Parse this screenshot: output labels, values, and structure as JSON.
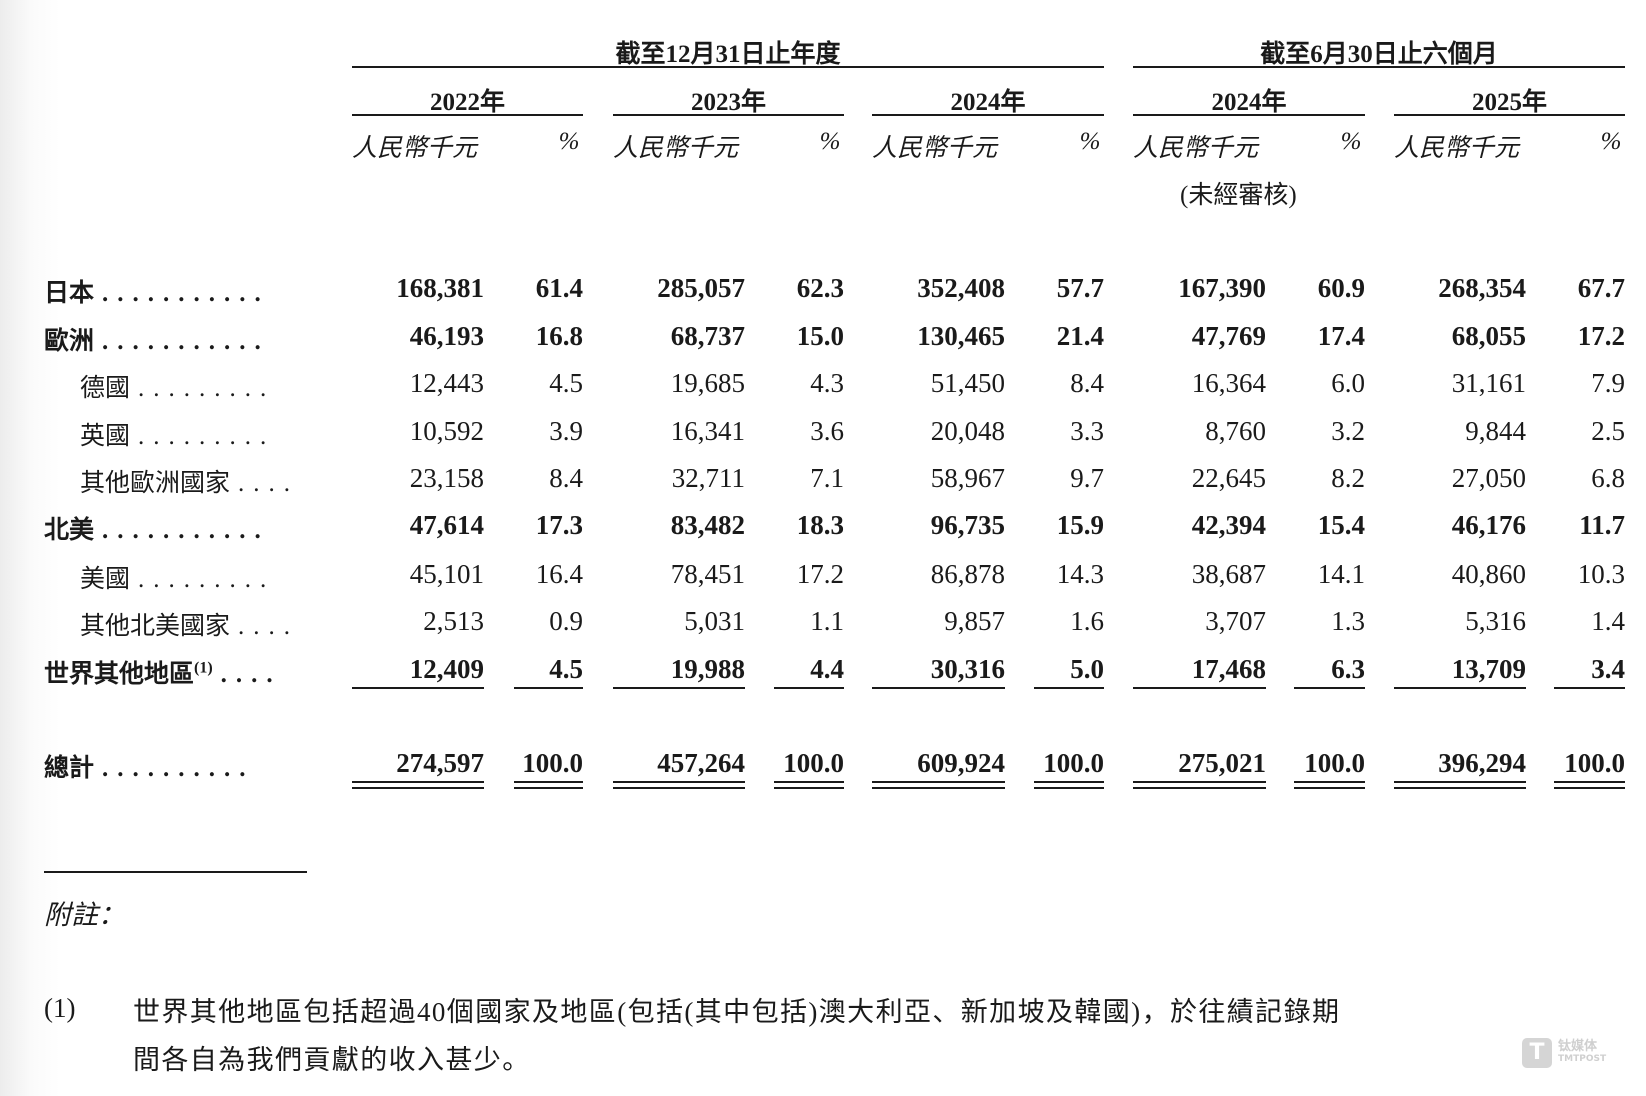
{
  "header": {
    "group_annual": "截至12月31日止年度",
    "group_interim": "截至6月30日止六個月",
    "years": [
      "2022年",
      "2023年",
      "2024年",
      "2024年",
      "2025年"
    ],
    "unit_amount": "人民幣千元",
    "unit_pct": "%",
    "unaudited": "(未經審核)"
  },
  "rows": [
    {
      "label": "日本",
      "dots": "...........",
      "bold": true,
      "values": [
        "168,381",
        "61.4",
        "285,057",
        "62.3",
        "352,408",
        "57.7",
        "167,390",
        "60.9",
        "268,354",
        "67.7"
      ]
    },
    {
      "label": "歐洲",
      "dots": "...........",
      "bold": true,
      "values": [
        "46,193",
        "16.8",
        "68,737",
        "15.0",
        "130,465",
        "21.4",
        "47,769",
        "17.4",
        "68,055",
        "17.2"
      ]
    },
    {
      "label": "德國",
      "dots": ".........",
      "bold": false,
      "indent": true,
      "values": [
        "12,443",
        "4.5",
        "19,685",
        "4.3",
        "51,450",
        "8.4",
        "16,364",
        "6.0",
        "31,161",
        "7.9"
      ]
    },
    {
      "label": "英國",
      "dots": ".........",
      "bold": false,
      "indent": true,
      "values": [
        "10,592",
        "3.9",
        "16,341",
        "3.6",
        "20,048",
        "3.3",
        "8,760",
        "3.2",
        "9,844",
        "2.5"
      ]
    },
    {
      "label": "其他歐洲國家",
      "dots": "....",
      "bold": false,
      "indent": true,
      "values": [
        "23,158",
        "8.4",
        "32,711",
        "7.1",
        "58,967",
        "9.7",
        "22,645",
        "8.2",
        "27,050",
        "6.8"
      ]
    },
    {
      "label": "北美",
      "dots": "...........",
      "bold": true,
      "values": [
        "47,614",
        "17.3",
        "83,482",
        "18.3",
        "96,735",
        "15.9",
        "42,394",
        "15.4",
        "46,176",
        "11.7"
      ]
    },
    {
      "label": "美國",
      "dots": ".........",
      "bold": false,
      "indent": true,
      "values": [
        "45,101",
        "16.4",
        "78,451",
        "17.2",
        "86,878",
        "14.3",
        "38,687",
        "14.1",
        "40,860",
        "10.3"
      ]
    },
    {
      "label": "其他北美國家",
      "dots": "....",
      "bold": false,
      "indent": true,
      "values": [
        "2,513",
        "0.9",
        "5,031",
        "1.1",
        "9,857",
        "1.6",
        "3,707",
        "1.3",
        "5,316",
        "1.4"
      ]
    },
    {
      "label": "世界其他地區",
      "sup": "(1)",
      "dots": "....",
      "bold": true,
      "values": [
        "12,409",
        "4.5",
        "19,988",
        "4.4",
        "30,316",
        "5.0",
        "17,468",
        "6.3",
        "13,709",
        "3.4"
      ]
    }
  ],
  "total": {
    "label": "總計",
    "dots": "..........",
    "values": [
      "274,597",
      "100.0",
      "457,264",
      "100.0",
      "609,924",
      "100.0",
      "275,021",
      "100.0",
      "396,294",
      "100.0"
    ]
  },
  "notes": {
    "title": "附註：",
    "marker": "(1)",
    "line1": "世界其他地區包括超過40個國家及地區(包括(其中包括)澳大利亞、新加坡及韓國)，於往績記錄期",
    "line2": "間各自為我們貢獻的收入甚少。"
  },
  "watermark": {
    "cn": "钛媒体",
    "en": "TMTPOST",
    "icon": "t-logo-icon"
  }
}
